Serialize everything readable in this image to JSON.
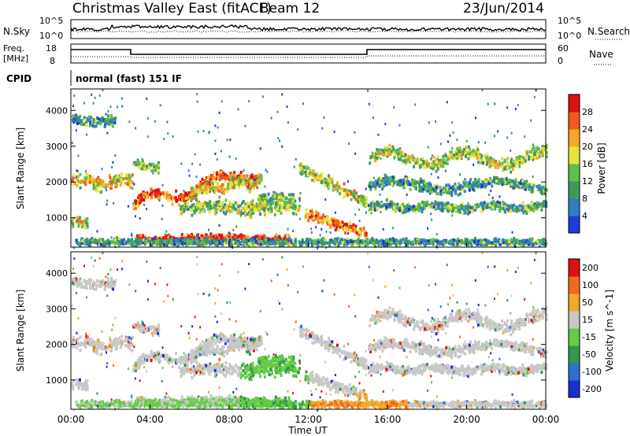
{
  "header": {
    "title": "Christmas Valley East (fitACF)",
    "beam": "Beam 12",
    "date": "23/Jun/2014"
  },
  "colors": {
    "power_scale": [
      "#1f3bd6",
      "#2f7fc0",
      "#3f9a5a",
      "#5cc04a",
      "#e6e63a",
      "#f4a72a",
      "#ef5a1e",
      "#e01010"
    ],
    "velocity_scale": [
      "#1a2fd0",
      "#2f6fd0",
      "#2f9a4a",
      "#66cc44",
      "#c8c8c8",
      "#f4a72a",
      "#ef6a1e",
      "#e01010"
    ]
  },
  "chart_data": [
    {
      "type": "line",
      "name": "noise-panel",
      "left_label": "N.Sky",
      "right_label": "N.Search",
      "left_ticks": [
        "10^5",
        "10^0"
      ],
      "right_ticks": [
        "10^5",
        "10^0"
      ]
    },
    {
      "type": "line",
      "name": "freq-nave-panel",
      "left_label": [
        "Freq.",
        "[MHz]"
      ],
      "right_label": "Nave",
      "left_ticks": [
        "18",
        "8"
      ],
      "right_ticks": [
        "60",
        "0"
      ]
    },
    {
      "type": "table",
      "name": "cpid-panel",
      "label": "CPID",
      "segments": [
        "normal (fast) 151 IF"
      ]
    },
    {
      "type": "heatmap",
      "name": "power-panel",
      "ylabel": "Slant Range [km]",
      "yticks": [
        1000,
        2000,
        3000,
        4000
      ],
      "ylim": [
        180,
        4600
      ],
      "xlim_hours": [
        0,
        24
      ],
      "colorbar": {
        "label": "Power [dB]",
        "ticks": [
          "4",
          "8",
          "12",
          "16",
          "20",
          "24",
          "28"
        ],
        "range": [
          0,
          32
        ]
      }
    },
    {
      "type": "heatmap",
      "name": "velocity-panel",
      "ylabel": "Slant Range [km]",
      "yticks": [
        1000,
        2000,
        3000,
        4000
      ],
      "ylim": [
        180,
        4600
      ],
      "xlim_hours": [
        0,
        24
      ],
      "colorbar": {
        "label": "Velocity [m s^-1]",
        "ticks": [
          "200",
          "100",
          "50",
          "15",
          "-15",
          "-50",
          "-100",
          "-200"
        ]
      }
    }
  ],
  "time_axis": {
    "label": "Time UT",
    "ticks": [
      "00:00",
      "04:00",
      "08:00",
      "12:00",
      "16:00",
      "20:00",
      "00:00"
    ]
  }
}
